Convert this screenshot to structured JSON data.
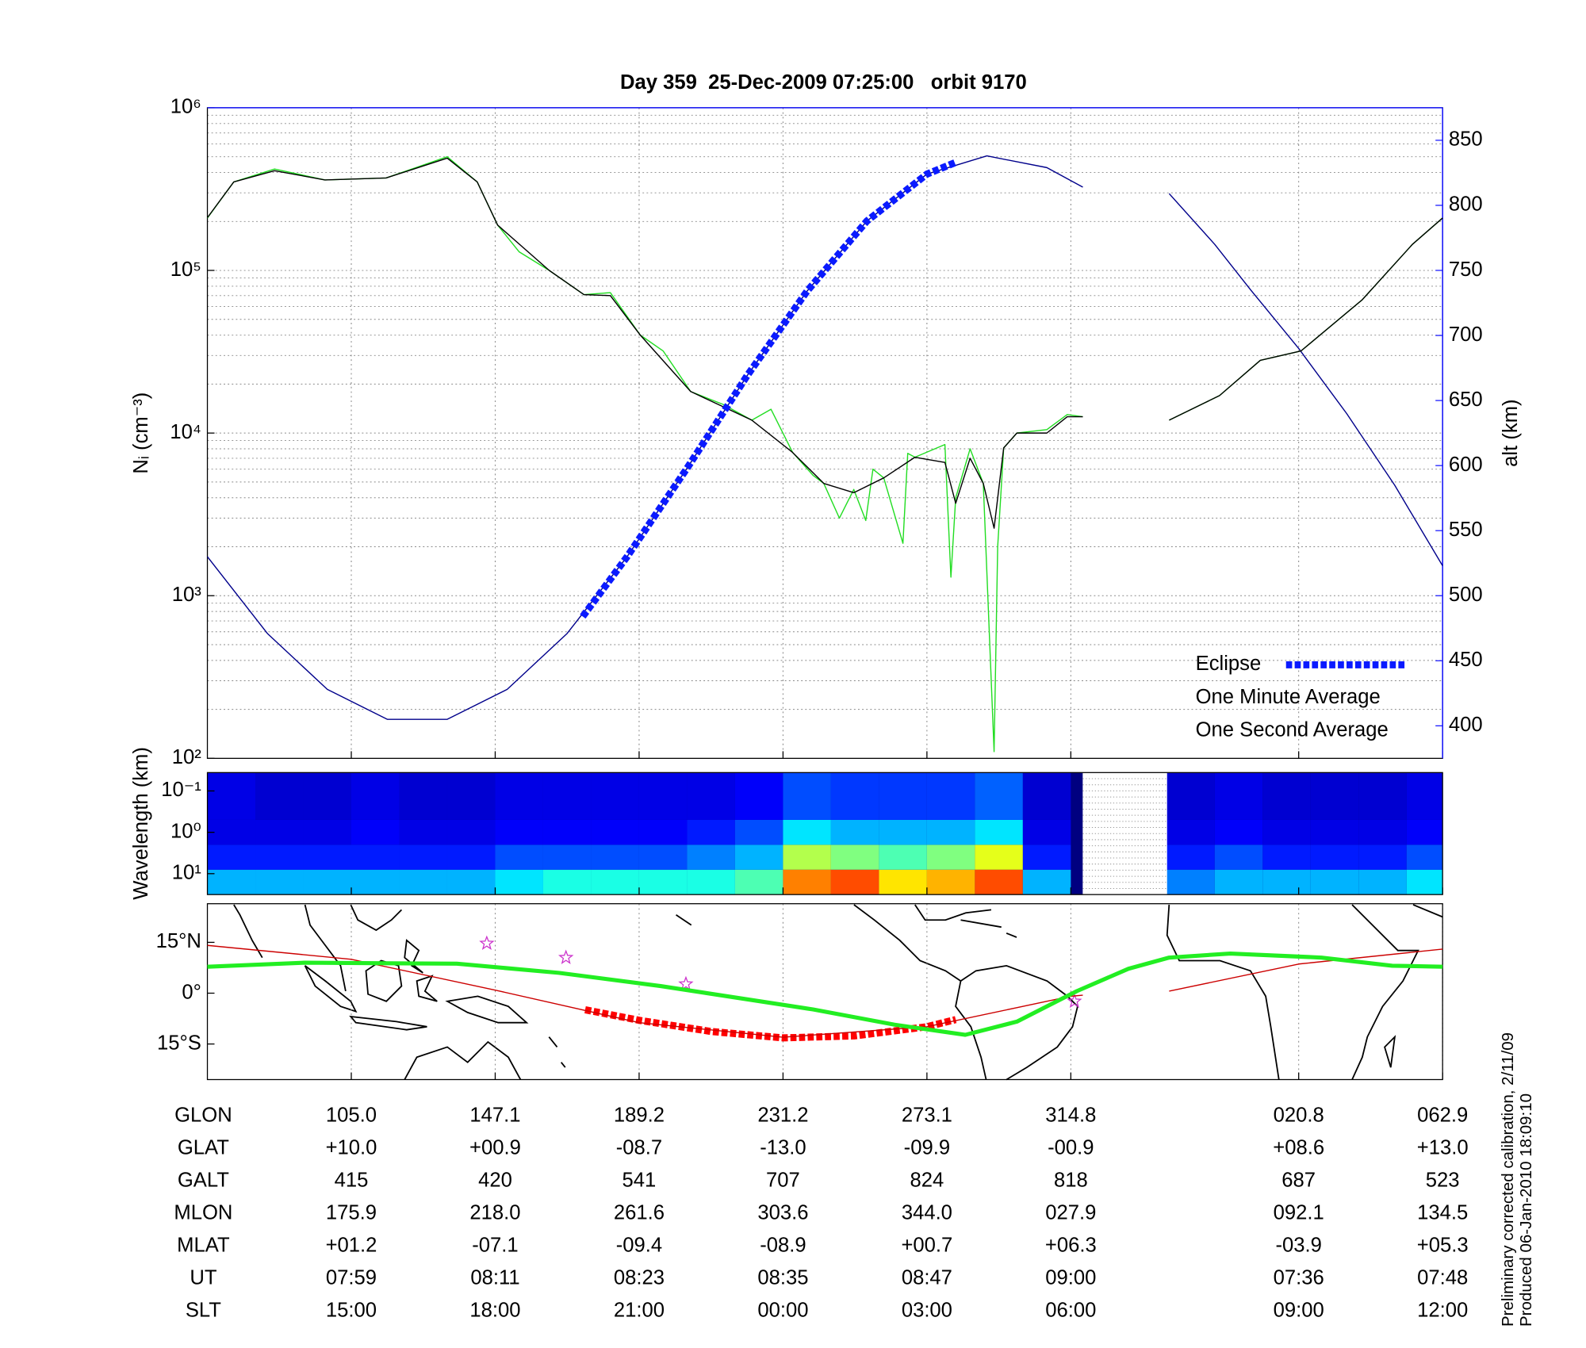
{
  "chart_data": [
    {
      "type": "line",
      "title": "Day 359  25-Dec-2009 07:25:00   orbit 9170",
      "ylabel": "Nᵢ (cm⁻³)",
      "y2label": "alt (km)",
      "y2_color": "#1a1aff",
      "log_y": true,
      "ylim": [
        100,
        1000000
      ],
      "yticks": [
        {
          "value": 100,
          "label": "10²"
        },
        {
          "value": 1000,
          "label": "10³"
        },
        {
          "value": 10000,
          "label": "10⁴"
        },
        {
          "value": 100000,
          "label": "10⁵"
        },
        {
          "value": 1000000,
          "label": "10⁶"
        }
      ],
      "y2lim": [
        375,
        875
      ],
      "y2ticks": [
        400,
        450,
        500,
        550,
        600,
        650,
        700,
        750,
        800,
        850
      ],
      "xlim": [
        0,
        103
      ],
      "xticks": [
        12,
        24,
        36,
        48,
        60,
        72,
        91,
        103
      ],
      "grid": true,
      "legend": "lower right",
      "series": [
        {
          "name": "Eclipse",
          "color": "#0a1aff",
          "axis": "y2",
          "style": "dashed",
          "x": [
            31.3,
            35,
            40,
            45,
            50,
            55,
            60,
            62.4
          ],
          "values": [
            484,
            530,
            598,
            669,
            734,
            788,
            824,
            833
          ]
        },
        {
          "name": "One Minute Average",
          "color": "#000000",
          "x": [
            0,
            2.2,
            5.6,
            9.8,
            14.9,
            20.0,
            22.5,
            24.2,
            28.5,
            31.4,
            33.6,
            36.1,
            40.3,
            45.4,
            48.8,
            51.4,
            53.9,
            56.4,
            59.0,
            61.5,
            62.4,
            63.6,
            64.7,
            65.6,
            66.4,
            67.5,
            70.0,
            71.7,
            73.0,
            76.6,
            80.2,
            84.4,
            87.8,
            91.2,
            96.3,
            100.5,
            103
          ],
          "values": [
            211000,
            350000,
            410000,
            360000,
            370000,
            490000,
            350000,
            190000,
            100000,
            71000,
            70000,
            40000,
            18000,
            12000,
            7600,
            4900,
            4300,
            5300,
            7100,
            6600,
            3700,
            7000,
            4900,
            2600,
            8100,
            10000,
            10000,
            12600,
            12600,
            null,
            12000,
            17000,
            28000,
            32000,
            66000,
            145000,
            210000
          ]
        },
        {
          "name": "One Second Average",
          "color": "#22dd22",
          "x": [
            0,
            2.2,
            5.6,
            9.8,
            14.9,
            20.0,
            22.5,
            24.2,
            26,
            28.5,
            31.4,
            33.6,
            36.1,
            38,
            40.3,
            43,
            45.4,
            47,
            48.8,
            50.5,
            51.4,
            52.7,
            53.9,
            54.9,
            55.5,
            56.4,
            58.0,
            58.4,
            59.0,
            61.5,
            62.0,
            62.4,
            63.6,
            64.7,
            65.6,
            65.9,
            66.4,
            67.5,
            70.0,
            71.7,
            73.0,
            76.6,
            80.2,
            84.4,
            87.8,
            91.2,
            96.3,
            100.5,
            103
          ],
          "values": [
            210000,
            350000,
            420000,
            360000,
            370000,
            500000,
            350000,
            190000,
            130000,
            100000,
            71000,
            73000,
            40000,
            32000,
            18000,
            15000,
            12000,
            14000,
            7600,
            5500,
            4900,
            3000,
            4500,
            2900,
            6000,
            5300,
            2100,
            7500,
            7100,
            8500,
            1300,
            4000,
            8000,
            4900,
            110,
            2000,
            8100,
            10000,
            10500,
            13000,
            12600,
            null,
            12000,
            17000,
            28000,
            32000,
            66000,
            145000,
            210000
          ]
        },
        {
          "color": "#00008b",
          "axis": "y2",
          "x": [
            0,
            5,
            10,
            15,
            20,
            25,
            30,
            35,
            40,
            45,
            50,
            55,
            60,
            65,
            70,
            73,
            76.6,
            80.2,
            84,
            87,
            91,
            95,
            99,
            103
          ],
          "values": [
            530,
            471,
            428,
            405,
            405,
            428,
            471,
            530,
            598,
            669,
            734,
            788,
            824,
            838,
            829,
            814,
            null,
            809,
            770,
            735,
            690,
            640,
            585,
            523
          ]
        }
      ]
    },
    {
      "type": "heatmap",
      "ylabel": "Wavelength (km)",
      "log_y": true,
      "ylim": [
        32,
        0.036
      ],
      "yticks": [
        {
          "value": 0.1,
          "label": "10⁻¹"
        },
        {
          "value": 1,
          "label": "10⁰"
        },
        {
          "value": 10,
          "label": "10¹"
        }
      ],
      "xlim": [
        0,
        103
      ],
      "xticks": [
        12,
        24,
        36,
        48,
        60,
        72,
        91,
        103
      ],
      "x_edges": [
        0,
        4,
        8,
        12,
        16,
        20,
        24,
        28,
        32,
        36,
        40,
        44,
        48,
        52,
        56,
        60,
        64,
        68,
        72,
        76,
        80,
        84,
        88,
        92,
        96,
        100,
        103
      ],
      "y_edges": [
        32,
        8,
        2,
        0.5,
        0.036
      ],
      "values": [
        [
          0.3,
          0.3,
          0.3,
          0.3,
          0.3,
          0.3,
          0.35,
          0.4,
          0.4,
          0.4,
          0.4,
          0.45,
          0.75,
          0.8,
          0.65,
          0.7,
          0.8,
          0.3,
          null,
          null,
          0.25,
          0.3,
          0.3,
          0.3,
          0.3,
          0.35
        ],
        [
          0.15,
          0.15,
          0.15,
          0.15,
          0.15,
          0.15,
          0.2,
          0.2,
          0.2,
          0.2,
          0.25,
          0.3,
          0.55,
          0.5,
          0.45,
          0.5,
          0.6,
          0.15,
          null,
          null,
          0.15,
          0.2,
          0.15,
          0.15,
          0.15,
          0.2
        ],
        [
          0.1,
          0.1,
          0.1,
          0.12,
          0.1,
          0.1,
          0.12,
          0.12,
          0.12,
          0.12,
          0.15,
          0.2,
          0.35,
          0.3,
          0.3,
          0.3,
          0.35,
          0.1,
          null,
          null,
          0.1,
          0.12,
          0.1,
          0.1,
          0.1,
          0.12
        ],
        [
          0.1,
          0.08,
          0.08,
          0.1,
          0.08,
          0.08,
          0.1,
          0.1,
          0.1,
          0.1,
          0.1,
          0.12,
          0.2,
          0.18,
          0.18,
          0.18,
          0.22,
          0.08,
          null,
          null,
          0.08,
          0.1,
          0.08,
          0.08,
          0.08,
          0.1
        ]
      ]
    },
    {
      "type": "line",
      "ylim": [
        -25.5,
        26.4
      ],
      "yticks": [
        {
          "value": -15,
          "label": "15°S"
        },
        {
          "value": 0,
          "label": "0°"
        },
        {
          "value": 15,
          "label": "15°N"
        }
      ],
      "xlim": [
        0,
        103
      ],
      "xticks": [
        12,
        24,
        36,
        48,
        60,
        72,
        91,
        103
      ],
      "grid": true,
      "series": [
        {
          "color": "#22ee22",
          "style": "thick",
          "x": [
            0,
            8.1,
            20.8,
            29.3,
            37.8,
            50.5,
            57.3,
            63.2,
            67.5,
            72.5,
            76.8,
            80.2,
            85.3,
            92.9,
            98.8,
            103
          ],
          "values": [
            7.8,
            9,
            8.7,
            6,
            2.1,
            -4.8,
            -9.3,
            -12.3,
            -8.4,
            0.6,
            7.2,
            10.5,
            11.7,
            10.5,
            8.1,
            7.8
          ]
        },
        {
          "color": "#cc0000",
          "x": [
            0,
            12,
            24,
            36,
            48,
            60,
            72,
            73,
            76.6,
            80.2,
            91,
            103
          ],
          "values": [
            14.1,
            10.0,
            0.9,
            -8.7,
            -13.0,
            -9.9,
            -0.9,
            -0.6,
            null,
            0.6,
            8.6,
            13.0
          ]
        },
        {
          "color": "#ff0000",
          "style": "dashed",
          "x": [
            31.5,
            36,
            42,
            48,
            54,
            60,
            62.4
          ],
          "values": [
            -4.9,
            -8.0,
            -11.3,
            -13.2,
            -12.6,
            -9.9,
            -7.8
          ]
        },
        {
          "color": "#cc33cc",
          "marker": "star",
          "x": [
            23.3,
            29.9,
            39.9,
            72.3
          ],
          "values": [
            14.7,
            10.5,
            2.7,
            -2.4
          ]
        }
      ]
    }
  ],
  "table": {
    "rows": [
      {
        "label": "GLON",
        "values": [
          "105.0",
          "147.1",
          "189.2",
          "231.2",
          "273.1",
          "314.8",
          "020.8",
          "062.9"
        ]
      },
      {
        "label": "GLAT",
        "values": [
          "+10.0",
          "+00.9",
          "-08.7",
          "-13.0",
          "-09.9",
          "-00.9",
          "+08.6",
          "+13.0"
        ]
      },
      {
        "label": "GALT",
        "values": [
          "415",
          "420",
          "541",
          "707",
          "824",
          "818",
          "687",
          "523"
        ]
      },
      {
        "label": "MLON",
        "values": [
          "175.9",
          "218.0",
          "261.6",
          "303.6",
          "344.0",
          "027.9",
          "092.1",
          "134.5"
        ]
      },
      {
        "label": "MLAT",
        "values": [
          "+01.2",
          "-07.1",
          "-09.4",
          "-08.9",
          "+00.7",
          "+06.3",
          "-03.9",
          "+05.3"
        ]
      },
      {
        "label": "UT",
        "values": [
          "07:59",
          "08:11",
          "08:23",
          "08:35",
          "08:47",
          "09:00",
          "07:36",
          "07:48"
        ]
      },
      {
        "label": "SLT",
        "values": [
          "15:00",
          "18:00",
          "21:00",
          "00:00",
          "03:00",
          "06:00",
          "09:00",
          "12:00"
        ]
      }
    ]
  },
  "notes": [
    "Preliminary corrected calibration, 2/11/09",
    "Produced 06-Jan-2010 18:09:10"
  ]
}
